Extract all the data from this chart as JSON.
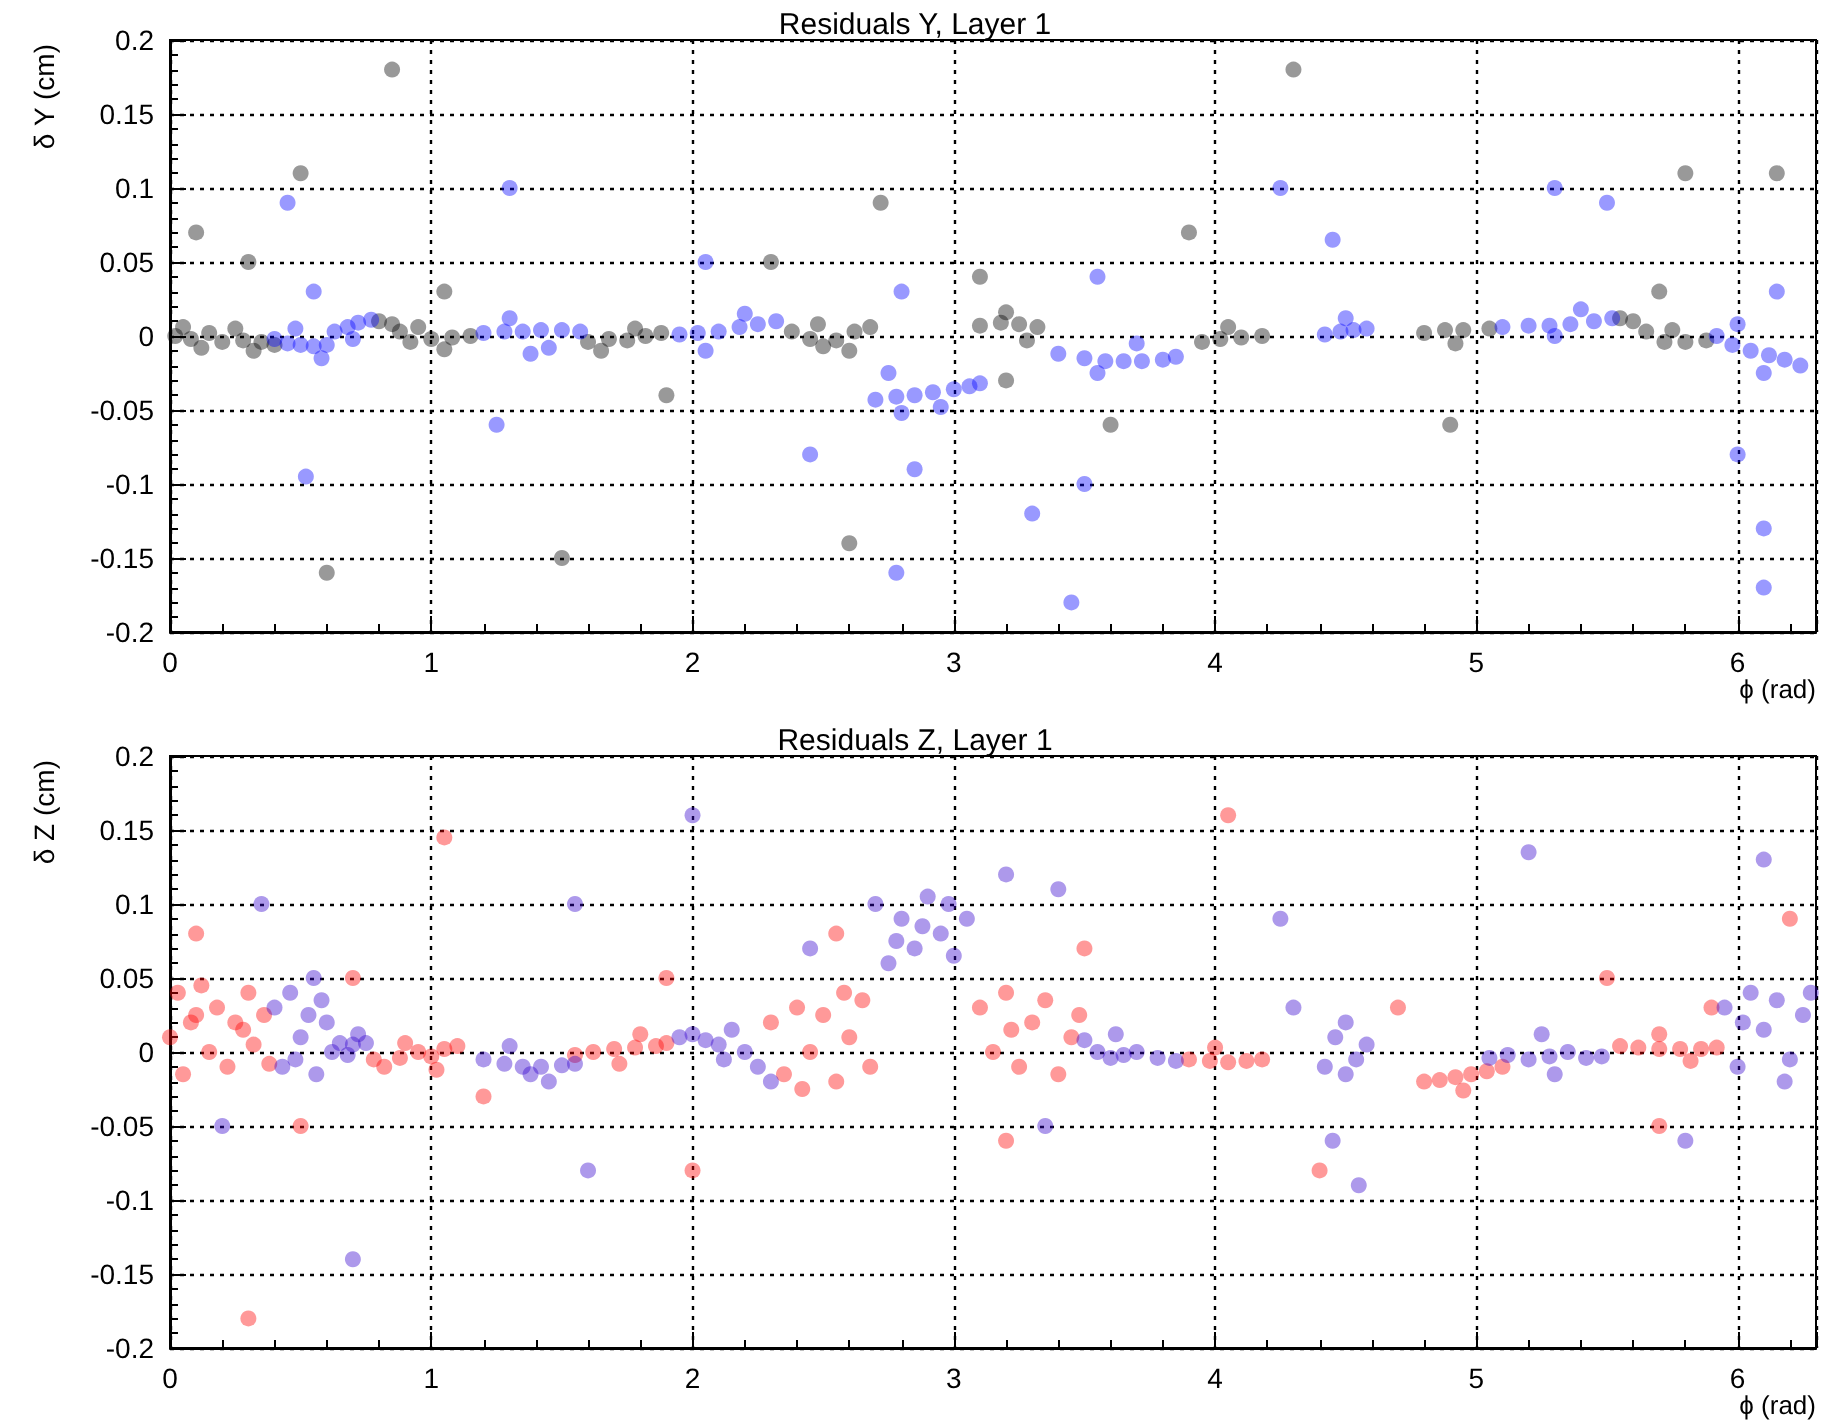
{
  "chart_data": [
    {
      "type": "scatter",
      "title": "Residuals Y, Layer 1",
      "xlabel": "ϕ (rad)",
      "ylabel": "δ Y (cm)",
      "xlim": [
        0,
        6.3
      ],
      "ylim": [
        -0.2,
        0.2
      ],
      "xticks": [
        0,
        1,
        2,
        3,
        4,
        5,
        6
      ],
      "yticks": [
        -0.2,
        -0.15,
        -0.1,
        -0.05,
        0,
        0.05,
        0.1,
        0.15,
        0.2
      ],
      "grid": true,
      "marker": "circle",
      "series": [
        {
          "color": "#000000",
          "x": [
            0.02,
            0.08,
            0.15,
            0.2,
            0.28,
            0.35,
            0.4,
            0.05,
            0.12,
            0.25,
            0.32,
            0.8,
            0.85,
            0.88,
            0.92,
            1.0,
            1.08,
            1.15,
            0.95,
            1.05,
            1.6,
            1.68,
            1.75,
            1.82,
            1.88,
            1.65,
            1.78,
            2.38,
            2.45,
            2.5,
            2.55,
            2.62,
            2.68,
            2.48,
            2.6,
            3.1,
            3.18,
            3.25,
            3.32,
            3.2,
            3.28,
            3.95,
            4.02,
            4.1,
            4.18,
            4.05,
            4.8,
            4.88,
            4.95,
            5.05,
            4.92,
            5.55,
            5.6,
            5.65,
            5.72,
            5.8,
            5.88,
            5.75,
            0.1,
            0.85,
            0.3,
            0.5,
            1.05,
            1.9,
            2.6,
            2.72,
            2.3,
            3.1,
            3.2,
            3.9,
            4.3,
            4.9,
            5.7,
            5.8,
            0.6,
            1.5,
            3.6,
            6.15
          ],
          "values": [
            0,
            -0.002,
            0.002,
            -0.004,
            -0.003,
            -0.004,
            -0.006,
            0.006,
            -0.008,
            0.005,
            -0.01,
            0.01,
            0.008,
            0.003,
            -0.004,
            -0.002,
            -0.001,
            0,
            0.006,
            -0.009,
            -0.004,
            -0.002,
            -0.003,
            0,
            0.002,
            -0.01,
            0.005,
            0.003,
            -0.002,
            -0.007,
            -0.003,
            0.003,
            0.006,
            0.008,
            -0.01,
            0.007,
            0.009,
            0.008,
            0.006,
            0.016,
            -0.003,
            -0.004,
            -0.002,
            -0.001,
            0,
            0.006,
            0.002,
            0.004,
            0.004,
            0.005,
            -0.005,
            0.012,
            0.01,
            0.003,
            -0.004,
            -0.004,
            -0.003,
            0.004,
            0.07,
            0.18,
            0.05,
            0.11,
            0.03,
            -0.04,
            -0.14,
            0.09,
            0.05,
            0.04,
            -0.03,
            0.07,
            0.18,
            -0.06,
            0.03,
            0.11,
            -0.16,
            -0.15,
            -0.06,
            0.11
          ]
        },
        {
          "color": "#0000ff",
          "x": [
            0.4,
            0.45,
            0.5,
            0.55,
            0.6,
            0.48,
            0.58,
            0.63,
            0.68,
            0.72,
            0.77,
            0.7,
            1.2,
            1.28,
            1.35,
            1.42,
            1.5,
            1.57,
            1.3,
            1.45,
            1.38,
            1.95,
            2.02,
            2.1,
            2.18,
            2.25,
            2.32,
            2.05,
            2.2,
            2.7,
            2.78,
            2.85,
            2.92,
            3.0,
            3.06,
            3.1,
            2.8,
            2.95,
            2.75,
            3.4,
            3.5,
            3.58,
            3.65,
            3.72,
            3.8,
            3.85,
            3.55,
            3.7,
            4.42,
            4.48,
            4.53,
            4.58,
            4.5,
            5.1,
            5.2,
            5.28,
            5.36,
            5.45,
            5.52,
            5.3,
            5.4,
            5.92,
            5.98,
            6.05,
            6.12,
            6.18,
            6.24,
            6.1,
            6.0,
            0.45,
            0.52,
            0.55,
            1.3,
            1.25,
            2.05,
            2.45,
            2.78,
            2.8,
            2.85,
            3.3,
            3.45,
            3.55,
            4.25,
            4.45,
            3.5,
            5.5,
            5.3,
            6.0,
            6.1,
            6.1,
            6.15
          ],
          "values": [
            -0.002,
            -0.005,
            -0.006,
            -0.007,
            -0.006,
            0.005,
            -0.015,
            0.003,
            0.006,
            0.009,
            0.011,
            -0.002,
            0.002,
            0.003,
            0.003,
            0.004,
            0.004,
            0.003,
            0.012,
            -0.008,
            -0.012,
            0.001,
            0.002,
            0.003,
            0.006,
            0.008,
            0.01,
            -0.01,
            0.015,
            -0.043,
            -0.041,
            -0.04,
            -0.038,
            -0.036,
            -0.034,
            -0.032,
            -0.052,
            -0.048,
            -0.025,
            -0.012,
            -0.015,
            -0.017,
            -0.017,
            -0.017,
            -0.016,
            -0.014,
            -0.025,
            -0.005,
            0.001,
            0.003,
            0.004,
            0.005,
            0.012,
            0.006,
            0.007,
            0.007,
            0.008,
            0.01,
            0.012,
            0,
            0.018,
            0,
            -0.006,
            -0.01,
            -0.013,
            -0.016,
            -0.02,
            -0.025,
            0.008,
            0.09,
            -0.095,
            0.03,
            0.1,
            -0.06,
            0.05,
            -0.08,
            -0.16,
            0.03,
            -0.09,
            -0.12,
            -0.18,
            0.04,
            0.1,
            0.065,
            -0.1,
            0.09,
            0.1,
            -0.08,
            -0.13,
            -0.17,
            0.03
          ]
        }
      ]
    },
    {
      "type": "scatter",
      "title": "Residuals Z, Layer 1",
      "xlabel": "ϕ (rad)",
      "ylabel": "δ Z (cm)",
      "xlim": [
        0,
        6.3
      ],
      "ylim": [
        -0.2,
        0.2
      ],
      "xticks": [
        0,
        1,
        2,
        3,
        4,
        5,
        6
      ],
      "yticks": [
        -0.2,
        -0.15,
        -0.1,
        -0.05,
        0,
        0.05,
        0.1,
        0.15,
        0.2
      ],
      "grid": true,
      "marker": "circle",
      "series": [
        {
          "color": "#ff0000",
          "x": [
            0,
            0.03,
            0.05,
            0.08,
            0.12,
            0.15,
            0.18,
            0.22,
            0.25,
            0.3,
            0.32,
            0.36,
            0.38,
            0.1,
            0.28,
            0.78,
            0.82,
            0.88,
            0.95,
            1.0,
            1.05,
            1.1,
            0.9,
            1.02,
            1.55,
            1.62,
            1.7,
            1.78,
            1.86,
            1.9,
            1.72,
            1.8,
            2.3,
            2.35,
            2.4,
            2.45,
            2.5,
            2.55,
            2.6,
            2.65,
            2.68,
            2.42,
            2.58,
            3.1,
            3.15,
            3.2,
            3.25,
            3.3,
            3.35,
            3.4,
            3.45,
            3.48,
            3.22,
            3.9,
            3.98,
            4.05,
            4.12,
            4.18,
            4.0,
            4.8,
            4.86,
            4.92,
            4.98,
            5.04,
            5.1,
            4.95,
            5.55,
            5.62,
            5.7,
            5.78,
            5.86,
            5.92,
            5.7,
            5.82,
            0.1,
            0.5,
            0.7,
            1.05,
            1.2,
            1.9,
            2.0,
            2.55,
            3.5,
            3.2,
            4.05,
            4.4,
            4.7,
            5.5,
            5.7,
            5.9,
            0.3,
            6.2
          ],
          "values": [
            0.01,
            0.04,
            -0.015,
            0.02,
            0.045,
            0,
            0.03,
            -0.01,
            0.02,
            0.04,
            0.005,
            0.025,
            -0.008,
            0.025,
            0.015,
            -0.005,
            -0.01,
            -0.004,
            0,
            -0.003,
            0.002,
            0.004,
            0.006,
            -0.012,
            -0.002,
            0,
            0.002,
            0.003,
            0.004,
            0.006,
            -0.008,
            0.012,
            0.02,
            -0.015,
            0.03,
            0,
            0.025,
            -0.02,
            0.01,
            0.035,
            -0.01,
            -0.025,
            0.04,
            0.03,
            0,
            0.04,
            -0.01,
            0.02,
            0.035,
            -0.015,
            0.01,
            0.025,
            0.015,
            -0.005,
            -0.006,
            -0.007,
            -0.006,
            -0.005,
            0.003,
            -0.02,
            -0.019,
            -0.017,
            -0.015,
            -0.013,
            -0.01,
            -0.026,
            0.004,
            0.003,
            0.002,
            0.002,
            0.002,
            0.003,
            0.012,
            -0.006,
            0.08,
            -0.05,
            0.05,
            0.145,
            -0.03,
            0.05,
            -0.08,
            0.08,
            0.07,
            -0.06,
            0.16,
            -0.08,
            0.03,
            0.05,
            -0.05,
            0.03,
            -0.18,
            0.09
          ]
        },
        {
          "color": "#3300cc",
          "x": [
            0.4,
            0.43,
            0.46,
            0.5,
            0.53,
            0.56,
            0.6,
            0.62,
            0.48,
            0.58,
            0.65,
            0.7,
            0.75,
            0.72,
            0.68,
            1.2,
            1.28,
            1.35,
            1.42,
            1.5,
            1.55,
            1.3,
            1.45,
            1.38,
            1.95,
            2.0,
            2.05,
            2.1,
            2.15,
            2.2,
            2.25,
            2.3,
            2.12,
            2.7,
            2.75,
            2.8,
            2.85,
            2.9,
            2.95,
            3.0,
            3.05,
            2.78,
            2.98,
            2.88,
            3.5,
            3.55,
            3.6,
            3.65,
            3.7,
            3.78,
            3.85,
            3.62,
            4.42,
            4.46,
            4.5,
            4.54,
            4.58,
            4.5,
            5.05,
            5.12,
            5.2,
            5.28,
            5.35,
            5.42,
            5.48,
            5.25,
            5.3,
            5.95,
            6.0,
            6.05,
            6.1,
            6.15,
            6.2,
            6.25,
            6.28,
            6.02,
            6.18,
            0.35,
            0.55,
            0.2,
            0.7,
            1.55,
            1.6,
            2.0,
            2.45,
            3.2,
            3.35,
            3.4,
            4.25,
            4.3,
            4.45,
            4.55,
            5.2,
            5.8,
            6.1
          ],
          "values": [
            0.03,
            -0.01,
            0.04,
            0.01,
            0.025,
            -0.015,
            0.02,
            0,
            -0.005,
            0.035,
            0.006,
            0.005,
            0.006,
            0.012,
            -0.002,
            -0.005,
            -0.008,
            -0.01,
            -0.01,
            -0.009,
            -0.008,
            0.004,
            -0.02,
            -0.015,
            0.01,
            0.012,
            0.008,
            0.005,
            0.015,
            0,
            -0.01,
            -0.02,
            -0.005,
            0.1,
            0.06,
            0.09,
            0.07,
            0.105,
            0.08,
            0.065,
            0.09,
            0.075,
            0.1,
            0.085,
            0.008,
            0,
            -0.004,
            -0.002,
            0,
            -0.004,
            -0.006,
            0.012,
            -0.01,
            0.01,
            0.02,
            -0.005,
            0.005,
            -0.015,
            -0.004,
            -0.002,
            -0.005,
            -0.003,
            0,
            -0.004,
            -0.003,
            0.012,
            -0.015,
            0.03,
            -0.01,
            0.04,
            0.015,
            0.035,
            -0.005,
            0.025,
            0.04,
            0.02,
            -0.02,
            0.1,
            0.05,
            -0.05,
            -0.14,
            0.1,
            -0.08,
            0.16,
            0.07,
            0.12,
            -0.05,
            0.11,
            0.09,
            0.03,
            -0.06,
            -0.09,
            0.135,
            -0.06,
            0.13
          ]
        }
      ]
    }
  ]
}
